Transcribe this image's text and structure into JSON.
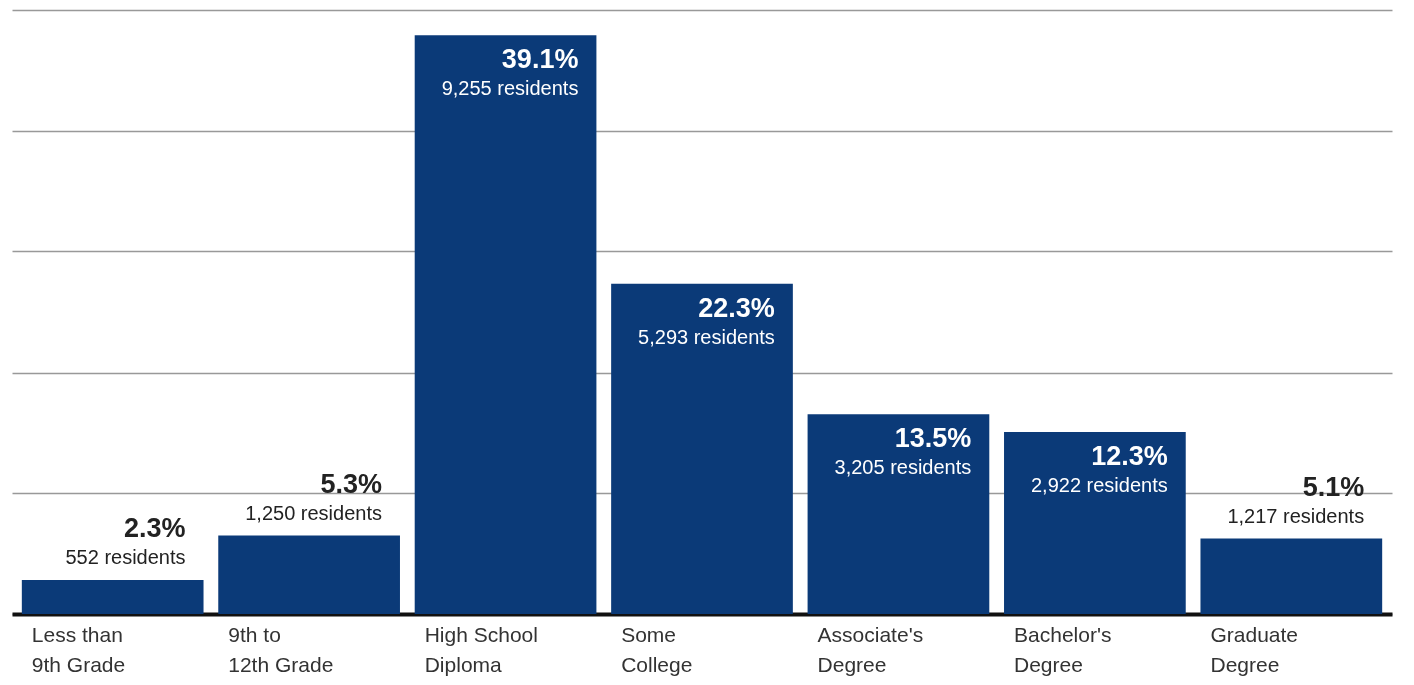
{
  "chart_data": {
    "type": "bar",
    "categories": [
      "Less than 9th Grade",
      "9th to 12th Grade",
      "High School Diploma",
      "Some College",
      "Associate's Degree",
      "Bachelor's Degree",
      "Graduate Degree"
    ],
    "values": [
      2.3,
      5.3,
      39.1,
      22.3,
      13.5,
      12.3,
      5.1
    ],
    "value_labels": [
      "2.3%",
      "5.3%",
      "39.1%",
      "22.3%",
      "13.5%",
      "12.3%",
      "5.1%"
    ],
    "annotations": [
      {
        "text": "552 residents",
        "x": "Less than 9th Grade",
        "y": 2.3
      },
      {
        "text": "1,250 residents",
        "x": "9th to 12th Grade",
        "y": 5.3
      },
      {
        "text": "9,255 residents",
        "x": "High School Diploma",
        "y": 39.1
      },
      {
        "text": "5,293 residents",
        "x": "Some College",
        "y": 22.3
      },
      {
        "text": "3,205 residents",
        "x": "Associate's Degree",
        "y": 13.5
      },
      {
        "text": "2,922 residents",
        "x": "Bachelor's Degree",
        "y": 12.3
      },
      {
        "text": "1,217 residents",
        "x": "Graduate Degree",
        "y": 5.1
      }
    ],
    "color": "#0b3a78",
    "ylim": [
      0,
      40.8
    ],
    "yticks": [
      {
        "value": 0,
        "label": null
      },
      {
        "value": 8.2,
        "label": null
      },
      {
        "value": 16.3,
        "label": null
      },
      {
        "value": 24.5,
        "label": null
      },
      {
        "value": 32.6,
        "label": null
      },
      {
        "value": 40.8,
        "label": null
      }
    ],
    "grid": "y",
    "tick_labels": "x"
  }
}
